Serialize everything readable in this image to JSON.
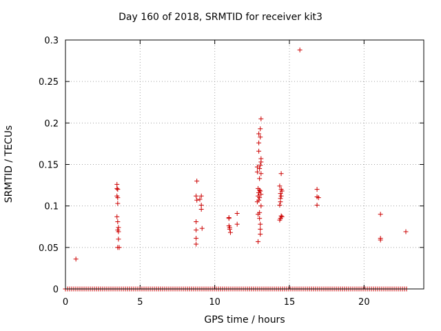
{
  "chart_data": {
    "type": "scatter",
    "title": "Day 160 of 2018, SRMTID for receiver kit3",
    "xlabel": "GPS time / hours",
    "ylabel": "SRMTID / TECUs",
    "xlim": [
      0,
      24
    ],
    "ylim": [
      0,
      0.3
    ],
    "xticks": [
      0,
      5,
      10,
      15,
      20
    ],
    "xtick_labels": [
      "0",
      "5",
      "10",
      "15",
      "20"
    ],
    "yticks": [
      0,
      0.05,
      0.1,
      0.15,
      0.2,
      0.25,
      0.3
    ],
    "ytick_labels": [
      "0",
      "0.05",
      "0.1",
      "0.15",
      "0.2",
      "0.25",
      "0.3"
    ],
    "grid": true,
    "marker": "+",
    "marker_color": "#cc0000",
    "zero_band_x": [
      0,
      22.9
    ],
    "points": [
      [
        0.7,
        0.036
      ],
      [
        3.45,
        0.126
      ],
      [
        3.45,
        0.121
      ],
      [
        3.5,
        0.12
      ],
      [
        3.45,
        0.112
      ],
      [
        3.5,
        0.11
      ],
      [
        3.5,
        0.103
      ],
      [
        3.45,
        0.087
      ],
      [
        3.5,
        0.081
      ],
      [
        3.55,
        0.074
      ],
      [
        3.5,
        0.071
      ],
      [
        3.55,
        0.069
      ],
      [
        3.55,
        0.06
      ],
      [
        3.5,
        0.05
      ],
      [
        3.6,
        0.05
      ],
      [
        8.8,
        0.13
      ],
      [
        8.75,
        0.112
      ],
      [
        8.8,
        0.107
      ],
      [
        9.1,
        0.112
      ],
      [
        9.0,
        0.108
      ],
      [
        9.1,
        0.101
      ],
      [
        9.1,
        0.096
      ],
      [
        8.75,
        0.081
      ],
      [
        9.15,
        0.073
      ],
      [
        8.75,
        0.071
      ],
      [
        8.75,
        0.061
      ],
      [
        8.75,
        0.054
      ],
      [
        10.95,
        0.086
      ],
      [
        10.95,
        0.085
      ],
      [
        10.95,
        0.076
      ],
      [
        11.0,
        0.074
      ],
      [
        11.0,
        0.072
      ],
      [
        11.05,
        0.068
      ],
      [
        11.5,
        0.091
      ],
      [
        11.5,
        0.078
      ],
      [
        13.1,
        0.205
      ],
      [
        13.05,
        0.193
      ],
      [
        12.95,
        0.187
      ],
      [
        13.05,
        0.183
      ],
      [
        12.95,
        0.176
      ],
      [
        12.95,
        0.166
      ],
      [
        13.1,
        0.157
      ],
      [
        13.1,
        0.153
      ],
      [
        13.05,
        0.149
      ],
      [
        12.85,
        0.147
      ],
      [
        13.0,
        0.145
      ],
      [
        12.85,
        0.141
      ],
      [
        13.1,
        0.139
      ],
      [
        13.0,
        0.133
      ],
      [
        12.9,
        0.121
      ],
      [
        13.0,
        0.119
      ],
      [
        13.05,
        0.118
      ],
      [
        12.95,
        0.116
      ],
      [
        13.1,
        0.114
      ],
      [
        12.9,
        0.112
      ],
      [
        13.0,
        0.11
      ],
      [
        12.95,
        0.107
      ],
      [
        12.85,
        0.105
      ],
      [
        13.1,
        0.1
      ],
      [
        13.0,
        0.092
      ],
      [
        12.9,
        0.09
      ],
      [
        13.0,
        0.085
      ],
      [
        13.05,
        0.078
      ],
      [
        13.05,
        0.072
      ],
      [
        13.05,
        0.066
      ],
      [
        12.9,
        0.057
      ],
      [
        14.45,
        0.139
      ],
      [
        14.35,
        0.124
      ],
      [
        14.45,
        0.12
      ],
      [
        14.5,
        0.118
      ],
      [
        14.4,
        0.115
      ],
      [
        14.45,
        0.112
      ],
      [
        14.4,
        0.109
      ],
      [
        14.4,
        0.105
      ],
      [
        14.35,
        0.101
      ],
      [
        14.45,
        0.088
      ],
      [
        14.5,
        0.087
      ],
      [
        14.4,
        0.085
      ],
      [
        14.35,
        0.083
      ],
      [
        15.7,
        0.288
      ],
      [
        16.85,
        0.12
      ],
      [
        16.85,
        0.111
      ],
      [
        16.95,
        0.11
      ],
      [
        16.85,
        0.101
      ],
      [
        21.1,
        0.09
      ],
      [
        21.1,
        0.061
      ],
      [
        21.1,
        0.059
      ],
      [
        22.8,
        0.069
      ]
    ]
  }
}
